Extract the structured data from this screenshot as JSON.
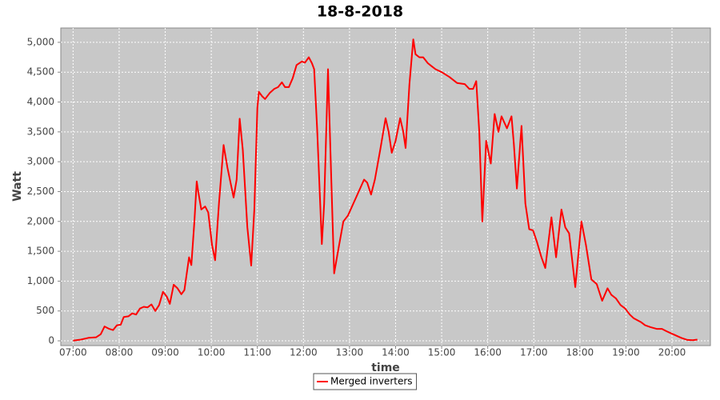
{
  "chart_data": {
    "type": "line",
    "title": "18-8-2018",
    "x_label": "time",
    "y_label": "Watt",
    "x": [
      "07:00",
      "07:10",
      "07:20",
      "07:30",
      "07:36",
      "07:41",
      "07:47",
      "07:52",
      "07:57",
      "08:02",
      "08:06",
      "08:12",
      "08:17",
      "08:22",
      "08:27",
      "08:32",
      "08:37",
      "08:42",
      "08:47",
      "08:52",
      "08:57",
      "09:02",
      "09:06",
      "09:11",
      "09:16",
      "09:21",
      "09:25",
      "09:31",
      "09:34",
      "09:38",
      "09:41",
      "09:43",
      "09:47",
      "09:52",
      "09:56",
      "10:01",
      "10:05",
      "10:10",
      "10:16",
      "10:21",
      "10:29",
      "10:33",
      "10:37",
      "10:41",
      "10:47",
      "10:52",
      "10:56",
      "11:00",
      "11:02",
      "11:06",
      "11:10",
      "11:16",
      "11:22",
      "11:27",
      "11:32",
      "11:36",
      "11:41",
      "11:46",
      "11:51",
      "11:58",
      "12:02",
      "12:07",
      "12:11",
      "12:14",
      "12:18",
      "12:24",
      "12:27",
      "12:32",
      "12:36",
      "12:40",
      "12:45",
      "12:52",
      "12:58",
      "13:05",
      "13:12",
      "13:19",
      "13:23",
      "13:28",
      "13:33",
      "13:40",
      "13:47",
      "13:51",
      "13:55",
      "14:00",
      "14:06",
      "14:10",
      "14:13",
      "14:18",
      "14:23",
      "14:26",
      "14:31",
      "14:36",
      "14:42",
      "14:47",
      "14:52",
      "15:00",
      "15:10",
      "15:20",
      "15:30",
      "15:36",
      "15:41",
      "15:45",
      "15:49",
      "15:53",
      "15:58",
      "16:04",
      "16:09",
      "16:14",
      "16:18",
      "16:25",
      "16:31",
      "16:34",
      "16:38",
      "16:44",
      "16:49",
      "16:54",
      "16:59",
      "17:04",
      "17:10",
      "17:15",
      "17:23",
      "17:29",
      "17:36",
      "17:41",
      "17:46",
      "17:54",
      "18:02",
      "18:08",
      "18:15",
      "18:22",
      "18:29",
      "18:36",
      "18:41",
      "18:47",
      "18:53",
      "18:59",
      "19:05",
      "19:10",
      "19:20",
      "19:25",
      "19:32",
      "19:40",
      "19:47",
      "19:53",
      "19:58",
      "20:05",
      "20:12",
      "20:20",
      "20:27",
      "20:33"
    ],
    "series": [
      {
        "name": "Merged inverters",
        "color": "#ff0000",
        "values": [
          5,
          20,
          50,
          60,
          110,
          240,
          200,
          180,
          260,
          270,
          400,
          410,
          460,
          440,
          540,
          570,
          560,
          610,
          500,
          600,
          820,
          740,
          620,
          940,
          880,
          780,
          850,
          1400,
          1270,
          2000,
          2670,
          2500,
          2200,
          2250,
          2150,
          1600,
          1350,
          2300,
          3280,
          2900,
          2400,
          2700,
          3720,
          3200,
          1900,
          1260,
          2200,
          3900,
          4170,
          4100,
          4050,
          4150,
          4220,
          4250,
          4330,
          4250,
          4250,
          4400,
          4620,
          4680,
          4660,
          4750,
          4650,
          4550,
          3500,
          1620,
          2300,
          4550,
          2800,
          1130,
          1500,
          2000,
          2100,
          2300,
          2500,
          2700,
          2650,
          2450,
          2700,
          3200,
          3730,
          3500,
          3150,
          3350,
          3730,
          3500,
          3230,
          4300,
          5050,
          4800,
          4750,
          4750,
          4650,
          4600,
          4550,
          4500,
          4420,
          4320,
          4300,
          4220,
          4220,
          4350,
          3500,
          2000,
          3350,
          2970,
          3800,
          3500,
          3760,
          3560,
          3760,
          3300,
          2550,
          3600,
          2300,
          1870,
          1850,
          1660,
          1400,
          1220,
          2070,
          1400,
          2200,
          1900,
          1800,
          900,
          2000,
          1600,
          1030,
          950,
          670,
          880,
          770,
          710,
          600,
          540,
          440,
          380,
          310,
          260,
          230,
          200,
          200,
          160,
          130,
          90,
          50,
          15,
          10,
          20
        ]
      }
    ],
    "ylim": [
      -80,
      5240
    ],
    "yticks": [
      0,
      500,
      {
        "value": 1000,
        "label": "1,000"
      },
      {
        "value": 1500,
        "label": "1,500"
      },
      {
        "value": 2000,
        "label": "2,000"
      },
      {
        "value": 2500,
        "label": "2,500"
      },
      {
        "value": 3000,
        "label": "3,000"
      },
      {
        "value": 3500,
        "label": "3,500"
      },
      {
        "value": 4000,
        "label": "4,000"
      },
      {
        "value": 4500,
        "label": "4,500"
      },
      {
        "value": 5000,
        "label": "5,000"
      }
    ],
    "xlim": [
      "06:44",
      "20:50"
    ],
    "xticks": [
      "07:00",
      "08:00",
      "09:00",
      "10:00",
      "11:00",
      "12:00",
      "13:00",
      "14:00",
      "15:00",
      "16:00",
      "17:00",
      "18:00",
      "19:00",
      "20:00"
    ],
    "grid": true,
    "legend": "bottom"
  }
}
